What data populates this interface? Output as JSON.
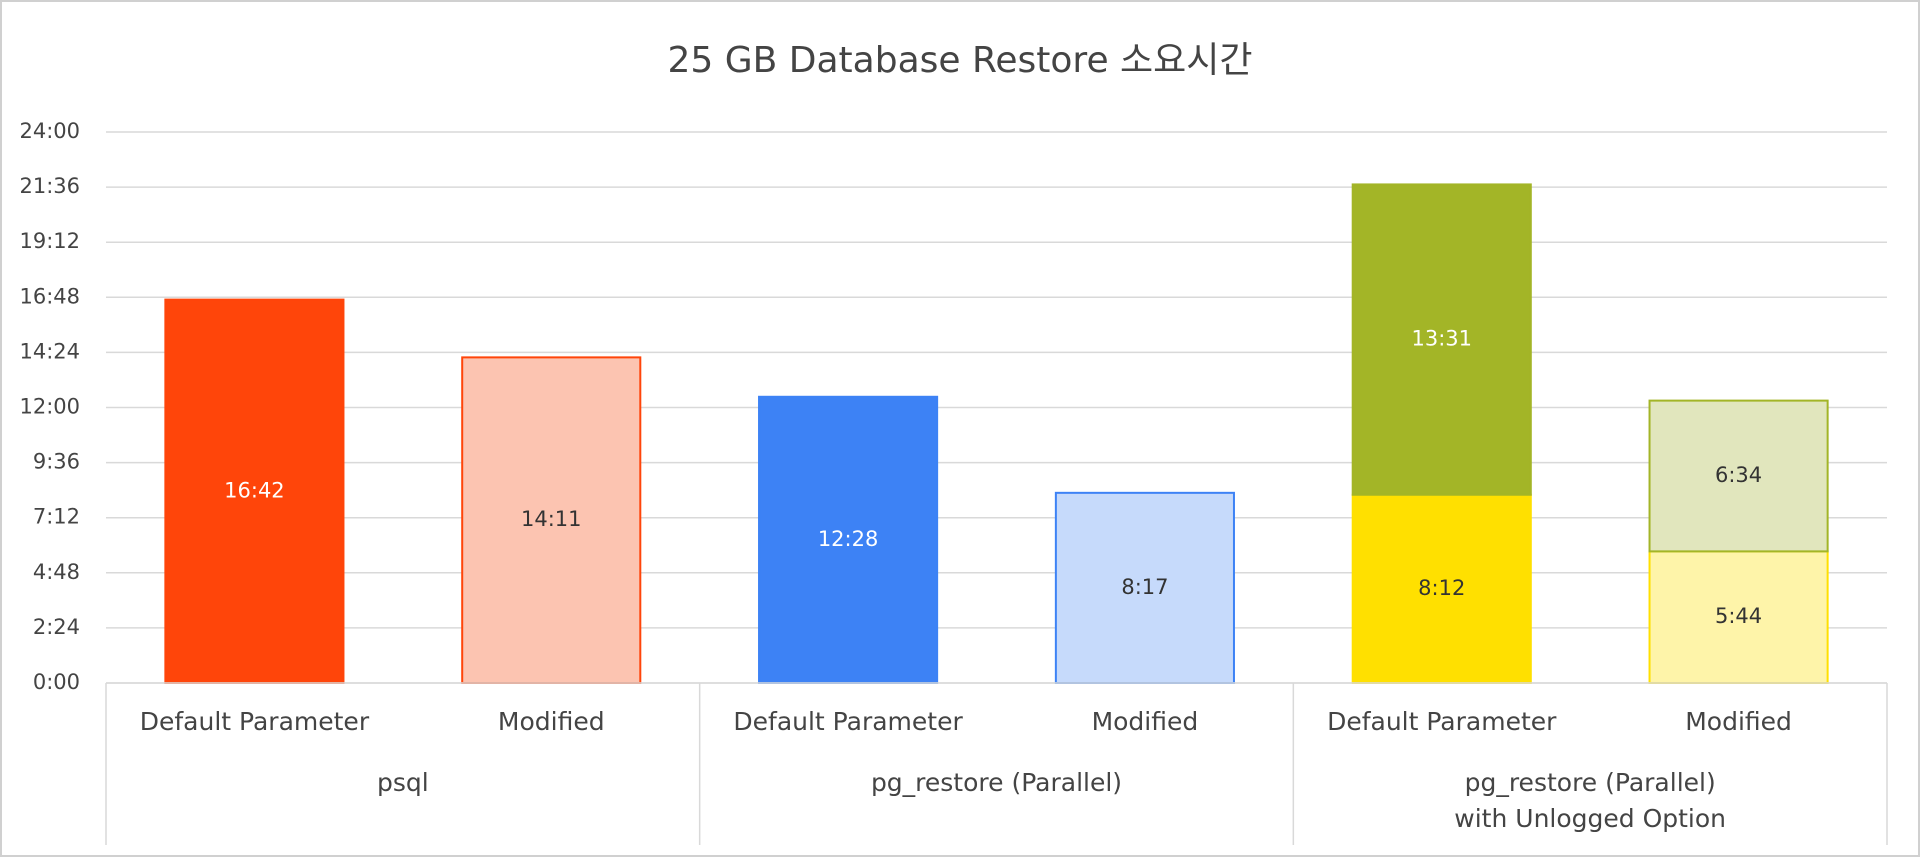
{
  "chart_data": {
    "type": "stacked-bar",
    "title": "25 GB Database Restore 소요시간",
    "groups": [
      {
        "name_lines": [
          "psql"
        ],
        "categories": [
          "Default Parameter",
          "Modified"
        ]
      },
      {
        "name_lines": [
          "pg_restore (Parallel)"
        ],
        "categories": [
          "Default Parameter",
          "Modified"
        ]
      },
      {
        "name_lines": [
          "pg_restore (Parallel)",
          "with Unlogged Option"
        ],
        "categories": [
          "Default Parameter",
          "Modified"
        ]
      }
    ],
    "series": [
      {
        "values": [
          1002,
          851,
          748,
          497,
          492,
          344
        ],
        "value_labels": [
          "16:42",
          "14:11",
          "12:28",
          "8:17",
          "8:12",
          "5:44"
        ],
        "colors": [
          "#ff450a",
          "#fcc4b1",
          "#3d82f5",
          "#c6dafb",
          "#ffe000",
          "#fef4a9"
        ],
        "stroke_colors": [
          "#ff450a",
          "#ff450a",
          "#3d82f5",
          "#3d82f5",
          "#ffe000",
          "#ffe000"
        ],
        "label_colors": [
          "#ffffff",
          "#333333",
          "#ffffff",
          "#333333",
          "#333333",
          "#333333"
        ]
      },
      {
        "values": [
          null,
          null,
          null,
          null,
          811,
          394
        ],
        "value_labels": [
          null,
          null,
          null,
          null,
          "13:31",
          "6:34"
        ],
        "colors": [
          null,
          null,
          null,
          null,
          "#a3b527",
          "#e1e6bd"
        ],
        "stroke_colors": [
          null,
          null,
          null,
          null,
          "#a3b527",
          "#a3b527"
        ],
        "label_colors": [
          null,
          null,
          null,
          null,
          "#ffffff",
          "#333333"
        ]
      }
    ],
    "ylim": [
      0,
      1440
    ],
    "yticks": [
      {
        "value": 0,
        "label": "0:00"
      },
      {
        "value": 144,
        "label": "2:24"
      },
      {
        "value": 288,
        "label": "4:48"
      },
      {
        "value": 432,
        "label": "7:12"
      },
      {
        "value": 576,
        "label": "9:36"
      },
      {
        "value": 720,
        "label": "12:00"
      },
      {
        "value": 864,
        "label": "14:24"
      },
      {
        "value": 1008,
        "label": "16:48"
      },
      {
        "value": 1152,
        "label": "19:12"
      },
      {
        "value": 1296,
        "label": "21:36"
      },
      {
        "value": 1440,
        "label": "24:00"
      }
    ],
    "grid": true
  }
}
